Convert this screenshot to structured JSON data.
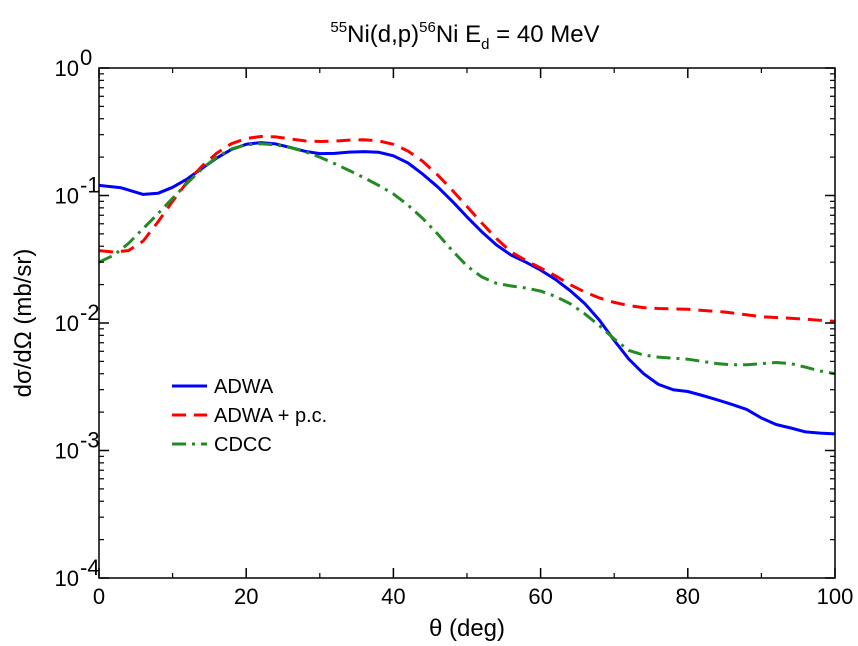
{
  "chart_data": {
    "type": "line",
    "title": {
      "pre_sup": "55",
      "text1": "Ni(d,p)",
      "mid_sup": "56",
      "text2": "Ni E",
      "sub": "d",
      "text3": " = 40 MeV"
    },
    "xlabel": "θ (deg)",
    "ylabel": "dσ/dΩ (mb/sr)",
    "xlim": [
      0,
      100
    ],
    "ylim": [
      0.0001,
      1
    ],
    "yscale": "log",
    "grid": false,
    "legend_position": "lower-left",
    "x_ticks": [
      {
        "value": 0,
        "label": "0"
      },
      {
        "value": 20,
        "label": "20"
      },
      {
        "value": 40,
        "label": "40"
      },
      {
        "value": 60,
        "label": "60"
      },
      {
        "value": 80,
        "label": "80"
      },
      {
        "value": 100,
        "label": "100"
      }
    ],
    "y_ticks": [
      {
        "exp": -4,
        "base": "10",
        "sup": "-4"
      },
      {
        "exp": -3,
        "base": "10",
        "sup": "-3"
      },
      {
        "exp": -2,
        "base": "10",
        "sup": "-2"
      },
      {
        "exp": -1,
        "base": "10",
        "sup": "-1"
      },
      {
        "exp": 0,
        "base": "10",
        "sup": "0"
      }
    ],
    "series": [
      {
        "name": "ADWA",
        "color": "#0000ff",
        "dash": "solid",
        "x": [
          0,
          3,
          6,
          8,
          10,
          12,
          14,
          16,
          18,
          20,
          22,
          24,
          26,
          28,
          30,
          32,
          34,
          36,
          38,
          40,
          42,
          44,
          46,
          48,
          50,
          52,
          54,
          56,
          58,
          60,
          62,
          64,
          66,
          68,
          70,
          72,
          74,
          76,
          78,
          80,
          82,
          84,
          86,
          88,
          90,
          92,
          94,
          96,
          98,
          100
        ],
        "y": [
          0.12,
          0.115,
          0.102,
          0.104,
          0.116,
          0.135,
          0.163,
          0.197,
          0.23,
          0.252,
          0.26,
          0.254,
          0.238,
          0.222,
          0.213,
          0.214,
          0.219,
          0.221,
          0.218,
          0.205,
          0.18,
          0.147,
          0.117,
          0.09,
          0.068,
          0.052,
          0.041,
          0.034,
          0.03,
          0.026,
          0.022,
          0.018,
          0.0142,
          0.0105,
          0.0073,
          0.0052,
          0.004,
          0.0033,
          0.003,
          0.0029,
          0.0027,
          0.0025,
          0.0023,
          0.0021,
          0.0018,
          0.0016,
          0.0015,
          0.0014,
          0.00137,
          0.00135
        ]
      },
      {
        "name": "ADWA + p.c.",
        "color": "#ff0000",
        "dash": "dashed",
        "x": [
          0,
          2,
          4,
          6,
          8,
          10,
          12,
          14,
          16,
          18,
          20,
          22,
          24,
          26,
          28,
          30,
          32,
          34,
          36,
          38,
          40,
          42,
          44,
          46,
          48,
          50,
          52,
          54,
          56,
          58,
          60,
          62,
          64,
          66,
          68,
          70,
          72,
          74,
          76,
          78,
          80,
          85,
          90,
          95,
          100
        ],
        "y": [
          0.037,
          0.036,
          0.037,
          0.044,
          0.062,
          0.09,
          0.128,
          0.17,
          0.215,
          0.255,
          0.28,
          0.29,
          0.288,
          0.278,
          0.268,
          0.265,
          0.267,
          0.272,
          0.274,
          0.268,
          0.252,
          0.223,
          0.185,
          0.145,
          0.11,
          0.082,
          0.061,
          0.046,
          0.036,
          0.031,
          0.027,
          0.0235,
          0.02,
          0.0175,
          0.0157,
          0.0145,
          0.0137,
          0.0132,
          0.013,
          0.0129,
          0.0128,
          0.0122,
          0.0112,
          0.0108,
          0.0103
        ]
      },
      {
        "name": "CDCC",
        "color": "#228b22",
        "dash": "dashdot",
        "x": [
          0,
          2,
          4,
          6,
          8,
          10,
          12,
          14,
          16,
          18,
          20,
          22,
          24,
          26,
          28,
          30,
          32,
          34,
          36,
          38,
          40,
          42,
          44,
          46,
          48,
          50,
          52,
          54,
          56,
          58,
          60,
          62,
          64,
          66,
          68,
          70,
          72,
          74,
          76,
          78,
          80,
          82,
          84,
          86,
          88,
          90,
          92,
          94,
          96,
          98,
          100
        ],
        "y": [
          0.03,
          0.034,
          0.042,
          0.055,
          0.072,
          0.095,
          0.125,
          0.162,
          0.2,
          0.232,
          0.25,
          0.255,
          0.25,
          0.238,
          0.22,
          0.2,
          0.178,
          0.157,
          0.138,
          0.12,
          0.103,
          0.084,
          0.066,
          0.05,
          0.037,
          0.028,
          0.023,
          0.0205,
          0.0195,
          0.0188,
          0.0178,
          0.0162,
          0.0142,
          0.0118,
          0.0095,
          0.0075,
          0.0061,
          0.0056,
          0.0054,
          0.0053,
          0.0052,
          0.005,
          0.0048,
          0.0047,
          0.0047,
          0.0048,
          0.0049,
          0.0048,
          0.0045,
          0.0042,
          0.004
        ]
      }
    ]
  }
}
